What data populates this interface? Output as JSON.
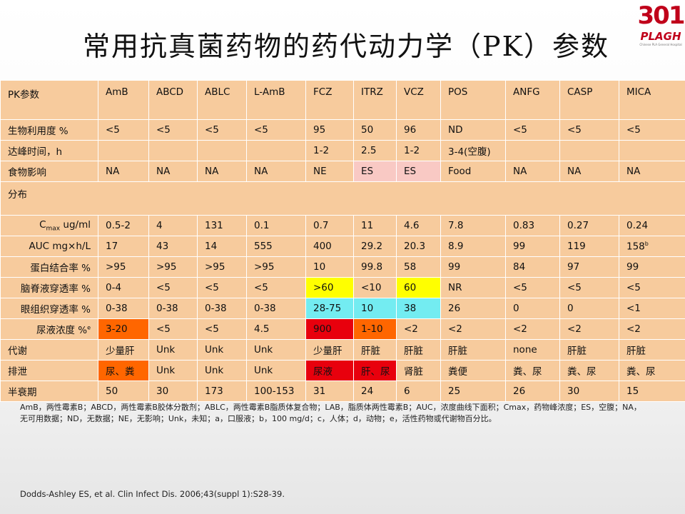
{
  "title": "常用抗真菌药物的药代动力学（PK）参数",
  "logo": {
    "number": "301",
    "name": "PLAGH",
    "subtitle": "Chinese PLA General Hospital",
    "color": "#c0001a"
  },
  "colors": {
    "cell": "#f7cb9d",
    "pink": "#f9c9c4",
    "yellow": "#ffff00",
    "cyan": "#73ecf1",
    "orange": "#ff6600",
    "red": "#e8000d"
  },
  "table": {
    "header": [
      "PK参数",
      "AmB",
      "ABCD",
      "ABLC",
      "L-AmB",
      "FCZ",
      "ITRZ",
      "VCZ",
      "POS",
      "ANFG",
      "CASP",
      "MICA"
    ],
    "section_distribution": "分布",
    "rows_top": [
      {
        "label": "生物利用度 %",
        "cells": [
          "<5",
          "<5",
          "<5",
          "<5",
          "95",
          "50",
          "96",
          "ND",
          "<5",
          "<5",
          "<5"
        ],
        "bg": {}
      },
      {
        "label": "达峰时间，h",
        "cells": [
          "",
          "",
          "",
          "",
          "1-2",
          "2.5",
          "1-2",
          "3-4(空腹)",
          "",
          "",
          ""
        ],
        "bg": {}
      },
      {
        "label": "食物影响",
        "cells": [
          "NA",
          "NA",
          "NA",
          "NA",
          "NE",
          "ES",
          "ES",
          "Food",
          "NA",
          "NA",
          "NA"
        ],
        "bg": {
          "5": "pink",
          "6": "pink"
        }
      }
    ],
    "rows_dist": [
      {
        "label": "Cmax ug/ml",
        "label_main": "C",
        "label_sub": "max",
        "label_rest": " ug/ml",
        "cells": [
          "0.5-2",
          "4",
          "131",
          "0.1",
          "0.7",
          "11",
          "4.6",
          "7.8",
          "0.83",
          "0.27",
          "0.24"
        ],
        "bg": {}
      },
      {
        "label": "AUC mg×h/L",
        "cells": [
          "17",
          "43",
          "14",
          "555",
          "400",
          "29.2",
          "20.3",
          "8.9",
          "99",
          "119",
          "158"
        ],
        "sup": {
          "10": "b"
        },
        "bg": {}
      },
      {
        "label": "蛋白结合率 %",
        "cells": [
          ">95",
          ">95",
          ">95",
          ">95",
          "10",
          "99.8",
          "58",
          "99",
          "84",
          "97",
          "99"
        ],
        "bg": {}
      },
      {
        "label": "脑脊液穿透率 %",
        "cells": [
          "0-4",
          "<5",
          "<5",
          "<5",
          ">60",
          "<10",
          "60",
          "NR",
          "<5",
          "<5",
          "<5"
        ],
        "bg": {
          "4": "yellow",
          "6": "yellow"
        }
      },
      {
        "label": "眼组织穿透率 %",
        "cells": [
          "0-38",
          "0-38",
          "0-38",
          "0-38",
          "28-75",
          "10",
          "38",
          "26",
          "0",
          "0",
          "<1"
        ],
        "bg": {
          "4": "cyan",
          "5": "cyan",
          "6": "cyan"
        }
      },
      {
        "label": "尿液浓度 %",
        "label_sup": "e",
        "cells": [
          "3-20",
          "<5",
          "<5",
          "4.5",
          "900",
          "1-10",
          "<2",
          "<2",
          "<2",
          "<2",
          "<2"
        ],
        "bg": {
          "0": "orange",
          "4": "red",
          "5": "orange"
        }
      }
    ],
    "rows_bottom": [
      {
        "label": "代谢",
        "cells": [
          "少量肝",
          "Unk",
          "Unk",
          "Unk",
          "少量肝",
          "肝脏",
          "肝脏",
          "肝脏",
          "none",
          "肝脏",
          "肝脏"
        ],
        "bg": {}
      },
      {
        "label": "排泄",
        "cells": [
          "尿、粪",
          "Unk",
          "Unk",
          "Unk",
          "尿液",
          "肝、尿",
          "肾脏",
          "粪便",
          "粪、尿",
          "粪、尿",
          "粪、尿"
        ],
        "bg": {
          "0": "orange",
          "4": "red",
          "5": "red"
        }
      },
      {
        "label": "半衰期",
        "cells": [
          "50",
          "30",
          "173",
          "100-153",
          "31",
          "24",
          "6",
          "25",
          "26",
          "30",
          "15"
        ],
        "bg": {}
      }
    ]
  },
  "footnote": "AmB，两性霉素B；ABCD，两性霉素B胶体分散剂；ABLC，两性霉素B脂质体复合物；LAB，脂质体两性霉素B；AUC，浓度曲线下面积；Cmax，药物峰浓度；ES，空腹；NA，无可用数据；ND，无数据；NE，无影响；Unk，未知；a，口服液；b，100 mg/d；c，人体；d，动物；e，活性药物或代谢物百分比。",
  "citation": "Dodds-Ashley ES, et al. Clin Infect Dis. 2006;43(suppl 1):S28-39."
}
